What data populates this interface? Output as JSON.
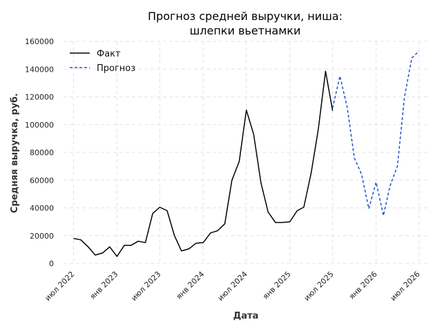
{
  "chart_data": {
    "type": "line",
    "title": "Прогноз средней выручки, ниша:",
    "subtitle": "шлепки вьетнамки",
    "xlabel": "Дата",
    "ylabel": "Средняя выручка, руб.",
    "ylim": [
      0,
      160000
    ],
    "yticks": [
      0,
      20000,
      40000,
      60000,
      80000,
      100000,
      120000,
      140000,
      160000
    ],
    "xlim": [
      "2022-05-20",
      "2026-08-15"
    ],
    "xticks": [
      {
        "date": "2022-07-01",
        "label": "июл 2022"
      },
      {
        "date": "2023-01-01",
        "label": "янв 2023"
      },
      {
        "date": "2023-07-01",
        "label": "июл 2023"
      },
      {
        "date": "2024-01-01",
        "label": "янв 2024"
      },
      {
        "date": "2024-07-01",
        "label": "июл 2024"
      },
      {
        "date": "2025-01-01",
        "label": "янв 2025"
      },
      {
        "date": "2025-07-01",
        "label": "июл 2025"
      },
      {
        "date": "2026-01-01",
        "label": "янв 2026"
      },
      {
        "date": "2026-07-01",
        "label": "июл 2026"
      }
    ],
    "grid": true,
    "legend_position": "top-left",
    "series": [
      {
        "name": "Факт",
        "color": "#000000",
        "dash": "solid",
        "x": [
          "2022-07-01",
          "2022-08-01",
          "2022-09-01",
          "2022-10-01",
          "2022-11-01",
          "2022-12-01",
          "2023-01-01",
          "2023-02-01",
          "2023-03-01",
          "2023-04-01",
          "2023-05-01",
          "2023-06-01",
          "2023-07-01",
          "2023-08-01",
          "2023-09-01",
          "2023-10-01",
          "2023-11-01",
          "2023-12-01",
          "2024-01-01",
          "2024-02-01",
          "2024-03-01",
          "2024-04-01",
          "2024-05-01",
          "2024-06-01",
          "2024-07-01",
          "2024-08-01",
          "2024-09-01",
          "2024-10-01",
          "2024-11-01",
          "2024-12-01",
          "2025-01-01",
          "2025-02-01",
          "2025-03-01",
          "2025-04-01",
          "2025-05-01",
          "2025-06-01",
          "2025-07-01"
        ],
        "values": [
          18000,
          17000,
          12000,
          6000,
          7500,
          12000,
          5000,
          13000,
          13000,
          16000,
          15000,
          36000,
          40500,
          38000,
          20000,
          9000,
          10500,
          14500,
          15000,
          22000,
          23500,
          28500,
          60000,
          73500,
          110500,
          93000,
          58000,
          37000,
          29500,
          29500,
          30000,
          38000,
          40500,
          65000,
          96000,
          138500,
          110000
        ]
      },
      {
        "name": "Прогноз",
        "color": "#1f4fd1",
        "dash": "dashed",
        "x": [
          "2025-07-01",
          "2025-08-01",
          "2025-09-01",
          "2025-10-01",
          "2025-11-01",
          "2025-12-01",
          "2026-01-01",
          "2026-02-01",
          "2026-03-01",
          "2026-04-01",
          "2026-05-01",
          "2026-06-01",
          "2026-07-01"
        ],
        "values": [
          112000,
          135000,
          112000,
          76000,
          64000,
          39500,
          58500,
          34500,
          56000,
          70000,
          120000,
          148000,
          153000
        ]
      }
    ]
  }
}
